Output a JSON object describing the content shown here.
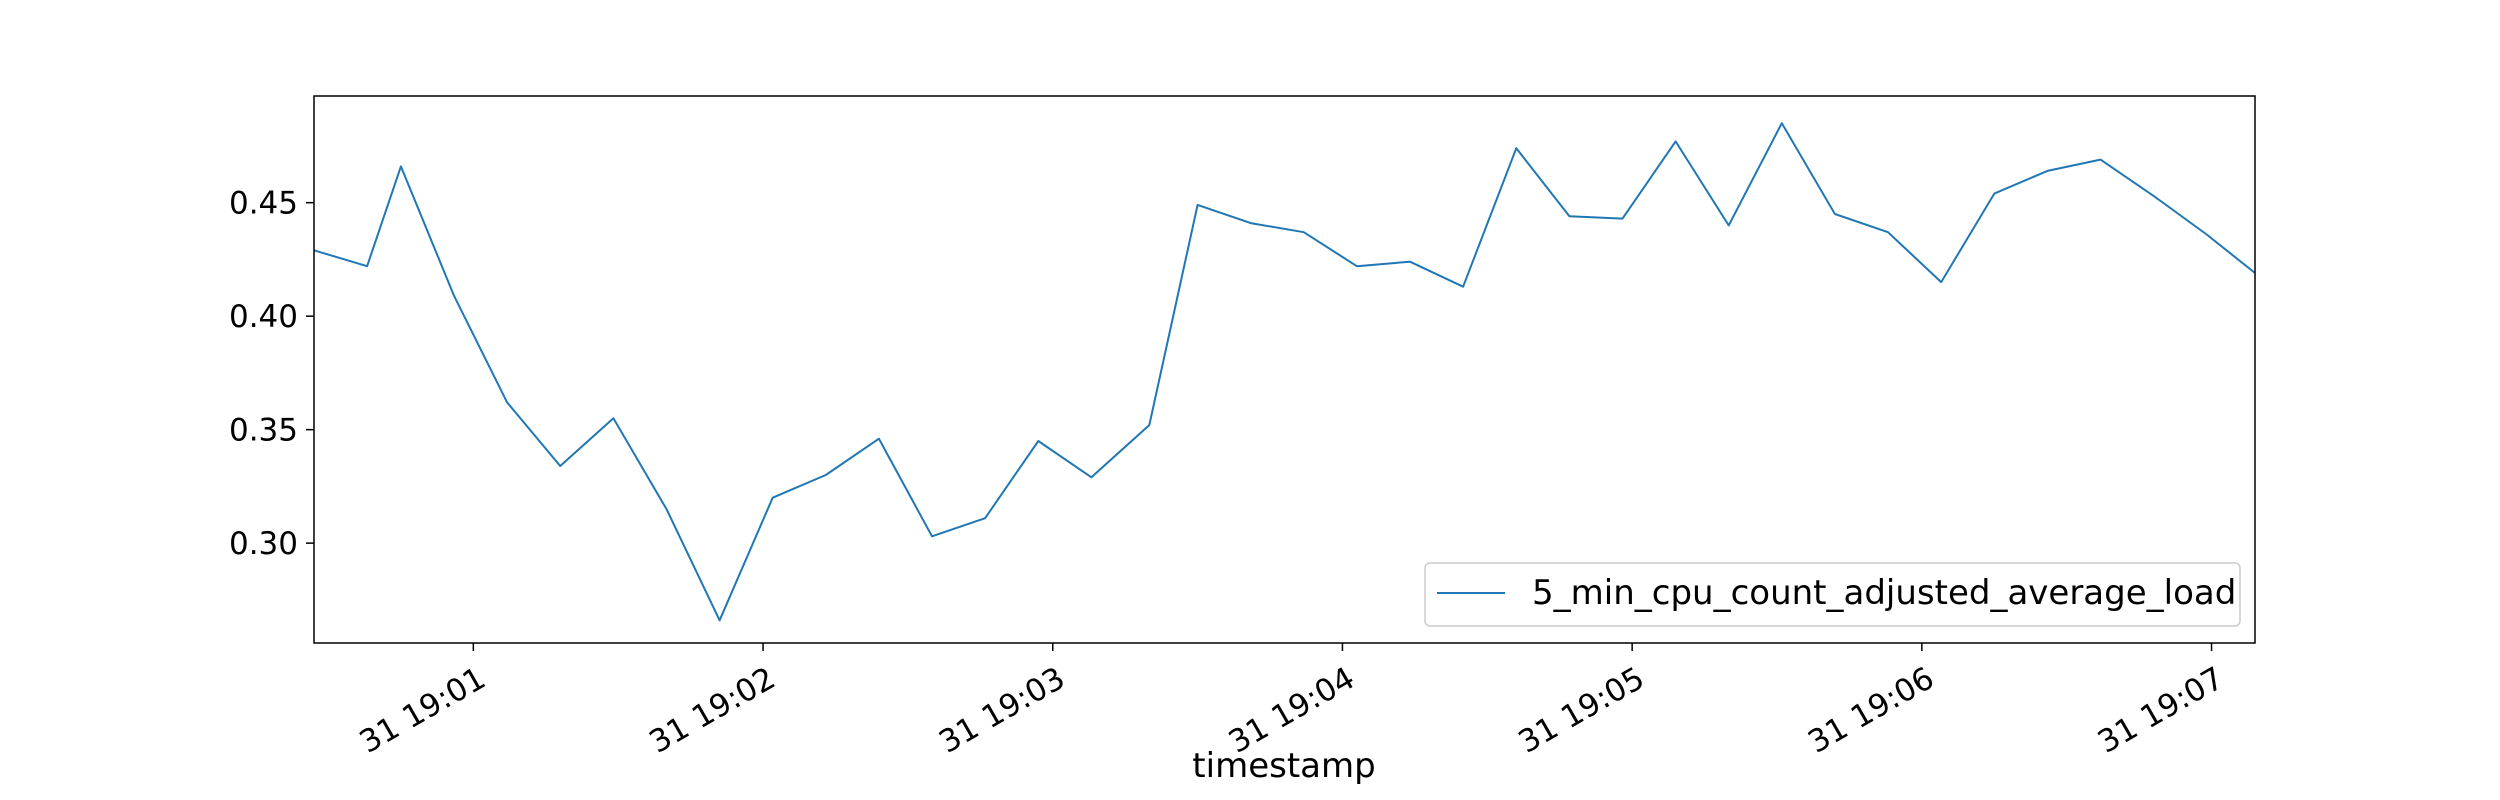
{
  "chart_data": {
    "type": "line",
    "title": "",
    "xlabel": "timestamp",
    "ylabel": "",
    "line_color": "#1f77b4",
    "legend_position": "lower-right",
    "grid": false,
    "xlim": [
      "19:00:27",
      "19:07:09"
    ],
    "ylim": [
      0.256,
      0.497
    ],
    "x_ticks": [
      {
        "time": "19:01:00",
        "label": "31 19:01"
      },
      {
        "time": "19:02:00",
        "label": "31 19:02"
      },
      {
        "time": "19:03:00",
        "label": "31 19:03"
      },
      {
        "time": "19:04:00",
        "label": "31 19:04"
      },
      {
        "time": "19:05:00",
        "label": "31 19:05"
      },
      {
        "time": "19:06:00",
        "label": "31 19:06"
      },
      {
        "time": "19:07:00",
        "label": "31 19:07"
      }
    ],
    "y_ticks": [
      {
        "value": 0.3,
        "label": "0.30"
      },
      {
        "value": 0.35,
        "label": "0.35"
      },
      {
        "value": 0.4,
        "label": "0.40"
      },
      {
        "value": 0.45,
        "label": "0.45"
      }
    ],
    "series": [
      {
        "name": "5_min_cpu_count_adjusted_average_load",
        "x": [
          "19:00:27",
          "19:00:38",
          "19:00:45",
          "19:00:56",
          "19:01:07",
          "19:01:18",
          "19:01:29",
          "19:01:40",
          "19:01:51",
          "19:02:02",
          "19:02:13",
          "19:02:24",
          "19:02:35",
          "19:02:46",
          "19:02:57",
          "19:03:08",
          "19:03:20",
          "19:03:30",
          "19:03:41",
          "19:03:52",
          "19:04:03",
          "19:04:14",
          "19:04:25",
          "19:04:36",
          "19:04:47",
          "19:04:58",
          "19:05:09",
          "19:05:20",
          "19:05:31",
          "19:05:42",
          "19:05:53",
          "19:06:04",
          "19:06:15",
          "19:06:26",
          "19:06:37",
          "19:06:48",
          "19:06:59",
          "19:07:09"
        ],
        "y": [
          0.429,
          0.422,
          0.466,
          0.409,
          0.362,
          0.334,
          0.355,
          0.315,
          0.266,
          0.32,
          0.33,
          0.346,
          0.303,
          0.311,
          0.345,
          0.329,
          0.352,
          0.449,
          0.441,
          0.437,
          0.422,
          0.424,
          0.413,
          0.474,
          0.444,
          0.443,
          0.477,
          0.44,
          0.485,
          0.445,
          0.437,
          0.415,
          0.454,
          0.464,
          0.469,
          0.453,
          0.436,
          0.419
        ]
      }
    ]
  }
}
